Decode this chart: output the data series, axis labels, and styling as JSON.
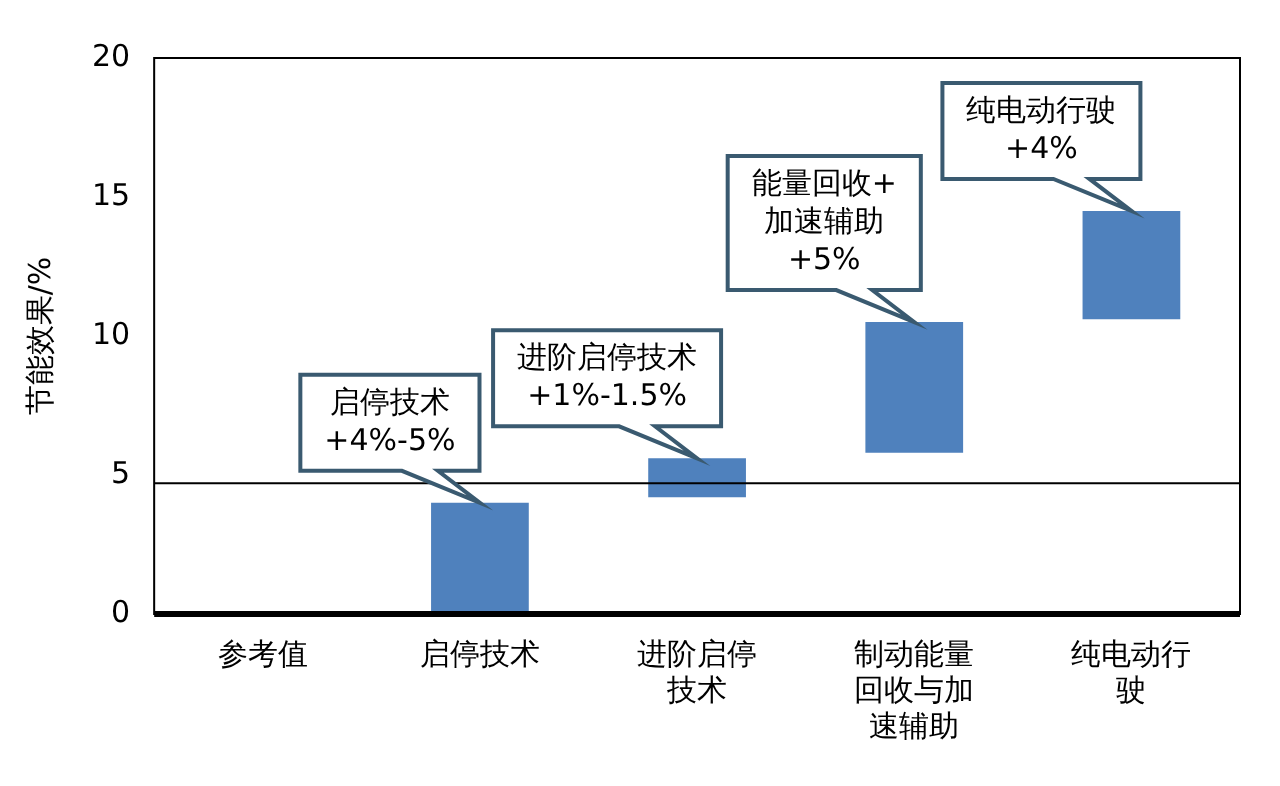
{
  "chart_data": {
    "type": "bar",
    "ylabel": "节能效果/%",
    "categories": [
      "参考值",
      "启停技术",
      "进阶启停技术",
      "制动能量回收与加速辅助",
      "纯电动行驶"
    ],
    "base": [
      null,
      0,
      4.2,
      5.8,
      10.6
    ],
    "values": [
      null,
      4,
      1.4,
      4.7,
      3.9
    ],
    "color": "#4f81bd",
    "ylim": [
      0,
      20
    ],
    "yticks": [
      0,
      5,
      10,
      15,
      20
    ],
    "grid": false,
    "legend": false,
    "ref_lines": [
      {
        "axis": "y",
        "value": 4.7,
        "color": "#000000"
      }
    ],
    "annotations": [
      {
        "text": "启停技术\n+4%-5%",
        "x": "启停技术",
        "y": 4
      },
      {
        "text": "进阶启停技术\n+1%-1.5%",
        "x": "进阶启停技术",
        "y": 5.6
      },
      {
        "text": "能量回收+\n加速辅助\n+5%",
        "x": "制动能量回收与加速辅助",
        "y": 10.5
      },
      {
        "text": "纯电动行驶\n+4%",
        "x": "纯电动行驶",
        "y": 14.5
      }
    ]
  }
}
